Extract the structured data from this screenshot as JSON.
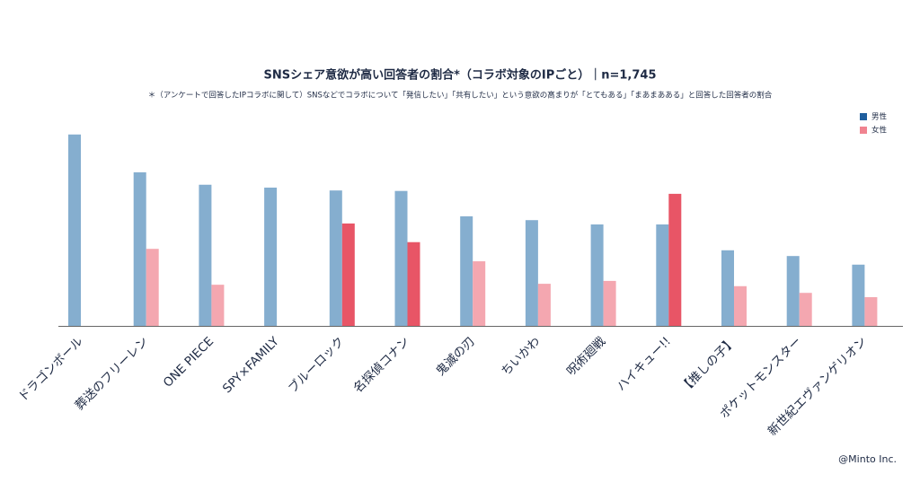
{
  "chart_data": {
    "type": "bar",
    "title": "SNSシェア意欲が高い回答者の割合*（コラボ対象のIPごと）｜n=1,745",
    "subtitle": "＊（アンケートで回答したIPコラボに関して）SNSなどでコラボについて「発信したい」「共有したい」という意欲の高まりが「とてもある」「まあまあある」と回答した回答者の割合",
    "credit": "@Minto Inc.",
    "categories": [
      "ドラゴンボール",
      "葬送のフリーレン",
      "ONE PIECE",
      "SPY×FAMILY",
      "ブルーロック",
      "名探偵コナン",
      "鬼滅の刃",
      "ちいかわ",
      "呪術廻戦",
      "ハイキュー!!",
      "【推しの子】",
      "ポケットモンスター",
      "新世紀エヴァンゲリオン"
    ],
    "series": [
      {
        "name": "男性",
        "color": "#85aecf",
        "legend_color": "#1f5f9e",
        "values": [
          40.0,
          32.1,
          29.5,
          28.9,
          28.3,
          28.2,
          22.9,
          22.1,
          21.2,
          21.2,
          15.8,
          14.6,
          12.8
        ]
      },
      {
        "name": "女性",
        "color": "#f4a7b0",
        "highlight_color": "#e85566",
        "legend_color": "#f08390",
        "highlight": [
          false,
          false,
          false,
          false,
          true,
          true,
          false,
          false,
          false,
          true,
          false,
          false,
          false
        ],
        "values": [
          null,
          16.1,
          8.6,
          null,
          21.4,
          17.5,
          13.5,
          8.8,
          9.4,
          27.6,
          8.3,
          6.9,
          6.0
        ]
      }
    ],
    "legend": "top-right"
  }
}
